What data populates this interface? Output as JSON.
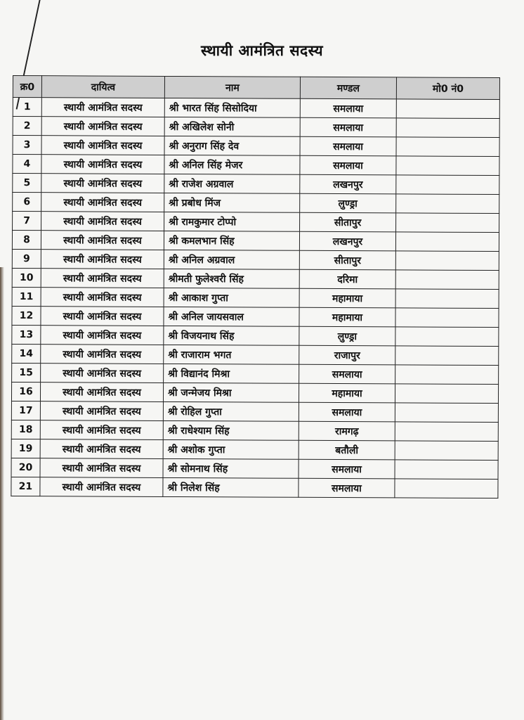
{
  "title": "स्थायी आमंत्रित सदस्य",
  "table": {
    "headers": [
      "क्र0",
      "दायित्व",
      "नाम",
      "मण्डल",
      "मो0 नं0"
    ],
    "rows": [
      {
        "sr": "1",
        "role": "स्थायी आमंत्रित सदस्य",
        "name": "श्री भारत सिंह सिसोदिया",
        "mandal": "समलाया",
        "mobile": ""
      },
      {
        "sr": "2",
        "role": "स्थायी आमंत्रित सदस्य",
        "name": "श्री अखिलेश सोनी",
        "mandal": "समलाया",
        "mobile": ""
      },
      {
        "sr": "3",
        "role": "स्थायी आमंत्रित सदस्य",
        "name": "श्री अनुराग सिंह देव",
        "mandal": "समलाया",
        "mobile": ""
      },
      {
        "sr": "4",
        "role": "स्थायी आमंत्रित सदस्य",
        "name": "श्री अनिल सिंह मेजर",
        "mandal": "समलाया",
        "mobile": ""
      },
      {
        "sr": "5",
        "role": "स्थायी आमंत्रित सदस्य",
        "name": "श्री राजेश अग्रवाल",
        "mandal": "लखनपुर",
        "mobile": ""
      },
      {
        "sr": "6",
        "role": "स्थायी आमंत्रित सदस्य",
        "name": "श्री प्रबोध मिंज",
        "mandal": "लुण्ड्रा",
        "mobile": ""
      },
      {
        "sr": "7",
        "role": "स्थायी आमंत्रित सदस्य",
        "name": "श्री रामकुमार टोप्पो",
        "mandal": "सीतापुर",
        "mobile": ""
      },
      {
        "sr": "8",
        "role": "स्थायी आमंत्रित सदस्य",
        "name": "श्री कमलभान सिंह",
        "mandal": "लखनपुर",
        "mobile": ""
      },
      {
        "sr": "9",
        "role": "स्थायी आमंत्रित सदस्य",
        "name": "श्री अनिल अग्रवाल",
        "mandal": "सीतापुर",
        "mobile": ""
      },
      {
        "sr": "10",
        "role": "स्थायी आमंत्रित सदस्य",
        "name": "श्रीमती फुलेश्वरी सिंह",
        "mandal": "दरिमा",
        "mobile": ""
      },
      {
        "sr": "11",
        "role": "स्थायी आमंत्रित सदस्य",
        "name": "श्री आकाश गुप्ता",
        "mandal": "महामाया",
        "mobile": ""
      },
      {
        "sr": "12",
        "role": "स्थायी आमंत्रित सदस्य",
        "name": "श्री अनिल जायसवाल",
        "mandal": "महामाया",
        "mobile": ""
      },
      {
        "sr": "13",
        "role": "स्थायी आमंत्रित सदस्य",
        "name": "श्री विजयनाथ सिंह",
        "mandal": "लुण्ड्रा",
        "mobile": ""
      },
      {
        "sr": "14",
        "role": "स्थायी आमंत्रित सदस्य",
        "name": "श्री राजाराम भगत",
        "mandal": "राजापुर",
        "mobile": ""
      },
      {
        "sr": "15",
        "role": "स्थायी आमंत्रित सदस्य",
        "name": "श्री विद्यानंद मिश्रा",
        "mandal": "समलाया",
        "mobile": ""
      },
      {
        "sr": "16",
        "role": "स्थायी आमंत्रित सदस्य",
        "name": "श्री जन्मेजय मिश्रा",
        "mandal": "महामाया",
        "mobile": ""
      },
      {
        "sr": "17",
        "role": "स्थायी आमंत्रित सदस्य",
        "name": "श्री रोहिल गुप्ता",
        "mandal": "समलाया",
        "mobile": ""
      },
      {
        "sr": "18",
        "role": "स्थायी आमंत्रित सदस्य",
        "name": "श्री राधेश्याम सिंह",
        "mandal": "रामगढ़",
        "mobile": ""
      },
      {
        "sr": "19",
        "role": "स्थायी आमंत्रित सदस्य",
        "name": "श्री अशोक गुप्ता",
        "mandal": "बतौली",
        "mobile": ""
      },
      {
        "sr": "20",
        "role": "स्थायी आमंत्रित सदस्य",
        "name": "श्री सोमनाथ सिंह",
        "mandal": "समलाया",
        "mobile": ""
      },
      {
        "sr": "21",
        "role": "स्थायी आमंत्रित सदस्य",
        "name": "श्री निलेश सिंह",
        "mandal": "समलाया",
        "mobile": ""
      }
    ]
  }
}
